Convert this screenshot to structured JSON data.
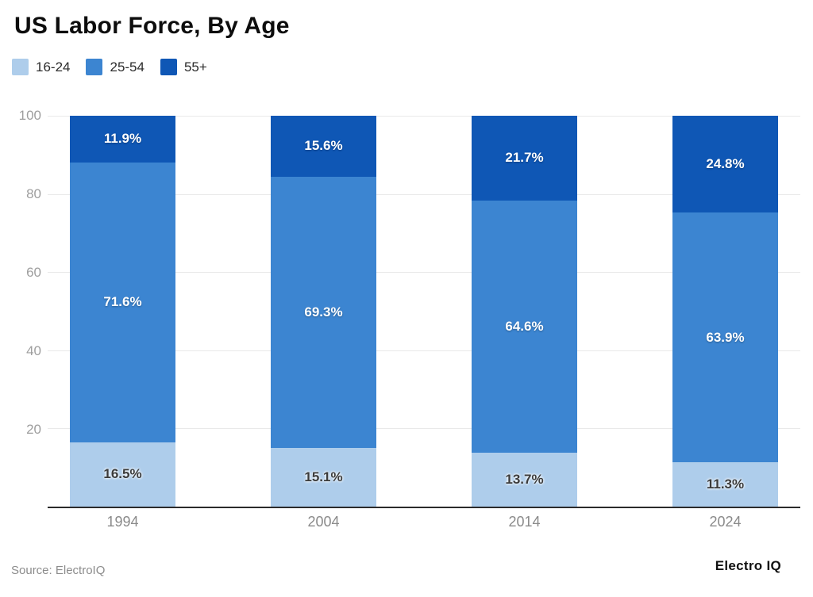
{
  "title": "US Labor Force, By Age",
  "legend": [
    {
      "label": "16-24",
      "color": "#aecdeb"
    },
    {
      "label": "25-54",
      "color": "#3c85d1"
    },
    {
      "label": "55+",
      "color": "#0f57b5"
    }
  ],
  "source": "Source: ElectroIQ",
  "brand": "Electro IQ",
  "chart_data": {
    "type": "bar",
    "stacked": true,
    "title": "US Labor Force, By Age",
    "categories": [
      "1994",
      "2004",
      "2014",
      "2024"
    ],
    "series": [
      {
        "name": "16-24",
        "color": "#aecdeb",
        "tone": "light",
        "values": [
          16.5,
          15.1,
          13.7,
          11.3
        ]
      },
      {
        "name": "25-54",
        "color": "#3c85d1",
        "tone": "dark",
        "values": [
          71.6,
          69.3,
          64.6,
          63.9
        ]
      },
      {
        "name": "55+",
        "color": "#0f57b5",
        "tone": "dark",
        "values": [
          11.9,
          15.6,
          21.7,
          24.8
        ]
      }
    ],
    "xlabel": "",
    "ylabel": "",
    "ylim": [
      0,
      100
    ],
    "yticks": [
      20,
      40,
      60,
      80,
      100
    ],
    "grid": true,
    "legend_position": "top",
    "value_label_format": "percent_one_decimal"
  }
}
